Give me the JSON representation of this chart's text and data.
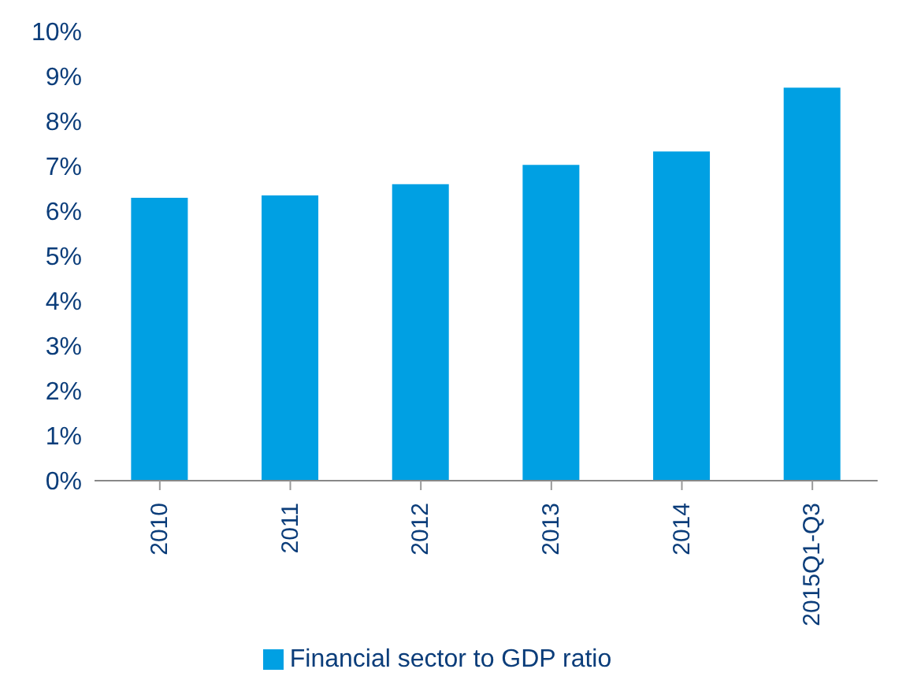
{
  "chart_data": {
    "type": "bar",
    "categories": [
      "2010",
      "2011",
      "2012",
      "2013",
      "2014",
      "2015Q1-Q3"
    ],
    "series": [
      {
        "name": "Financial sector to GDP ratio",
        "color": "#00a0e3",
        "values": [
          6.3,
          6.35,
          6.6,
          7.03,
          7.33,
          8.75
        ]
      }
    ],
    "ylim": [
      0,
      10
    ],
    "yticks": [
      {
        "value": 0,
        "label": "0%"
      },
      {
        "value": 1,
        "label": "1%"
      },
      {
        "value": 2,
        "label": "2%"
      },
      {
        "value": 3,
        "label": "3%"
      },
      {
        "value": 4,
        "label": "4%"
      },
      {
        "value": 5,
        "label": "5%"
      },
      {
        "value": 6,
        "label": "6%"
      },
      {
        "value": 7,
        "label": "7%"
      },
      {
        "value": 8,
        "label": "8%"
      },
      {
        "value": 9,
        "label": "9%"
      },
      {
        "value": 10,
        "label": "10%"
      }
    ],
    "grid": false,
    "legend": "bottom"
  }
}
